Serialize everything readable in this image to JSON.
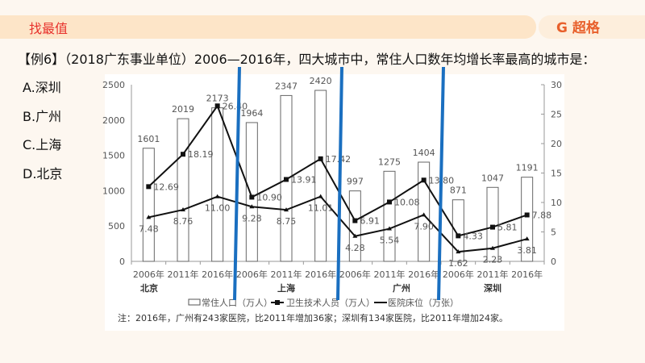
{
  "header": {
    "section_title": "找最值",
    "logo_text": "超格"
  },
  "question": "【例6】（2018广东事业单位）2006—2016年，四大城市中，常住人口数年均增长率最高的城市是：",
  "options": [
    "A.深圳",
    "B.广州",
    "C.上海",
    "D.北京"
  ],
  "chart_data": {
    "type": "bar+line",
    "categories": [
      "2006年",
      "2011年",
      "2016年",
      "2006年",
      "2011年",
      "2016年",
      "2006年",
      "2011年",
      "2016年",
      "2006年",
      "2011年",
      "2016年"
    ],
    "groups": [
      "北京",
      "上海",
      "广州",
      "深圳"
    ],
    "y_left": {
      "range": [
        0,
        2500
      ],
      "ticks": [
        "0",
        "500",
        "1000",
        "1500",
        "2000",
        "2500"
      ]
    },
    "y_right": {
      "range": [
        0,
        30
      ],
      "ticks": [
        "0",
        "5",
        "10",
        "15",
        "20",
        "25",
        "30"
      ]
    },
    "series": [
      {
        "name": "常住人口（万人）",
        "kind": "bar",
        "axis": "left",
        "values": [
          1601,
          2019,
          2173,
          1964,
          2347,
          2420,
          997,
          1275,
          1404,
          871,
          1047,
          1191
        ],
        "labels": [
          "1601",
          "2019",
          "2173",
          "1964",
          "2347",
          "2420",
          "997",
          "1275",
          "1404",
          "871",
          "1047",
          "1191"
        ]
      },
      {
        "name": "卫生技术人员（万人）",
        "kind": "line",
        "axis": "right",
        "values": [
          12.69,
          18.19,
          26.4,
          10.9,
          13.91,
          17.42,
          6.91,
          10.08,
          13.8,
          4.33,
          5.81,
          7.88
        ],
        "labels": [
          "12.69",
          "18.19",
          "26.40",
          "10.90",
          "13.91",
          "17.42",
          "6.91",
          "10.08",
          "13.80",
          "4.33",
          "5.81",
          "7.88"
        ]
      },
      {
        "name": "医院床位（万张）",
        "kind": "line",
        "axis": "right",
        "values": [
          7.48,
          8.76,
          11.0,
          9.28,
          8.75,
          11.01,
          4.28,
          5.54,
          7.9,
          1.62,
          2.23,
          3.81
        ],
        "labels": [
          "7.48",
          "8.76",
          "11.00",
          "9.28",
          "8.75",
          "11.01",
          "4.28",
          "5.54",
          "7.90",
          "1.62",
          "2.23",
          "3.81"
        ]
      }
    ],
    "legend": "bottom",
    "note": "注：2016年，广州有243家医院，比2011年增加36家；深圳有134家医院，比2011年增加24家。"
  },
  "annotation_color": "#1a6fc0"
}
